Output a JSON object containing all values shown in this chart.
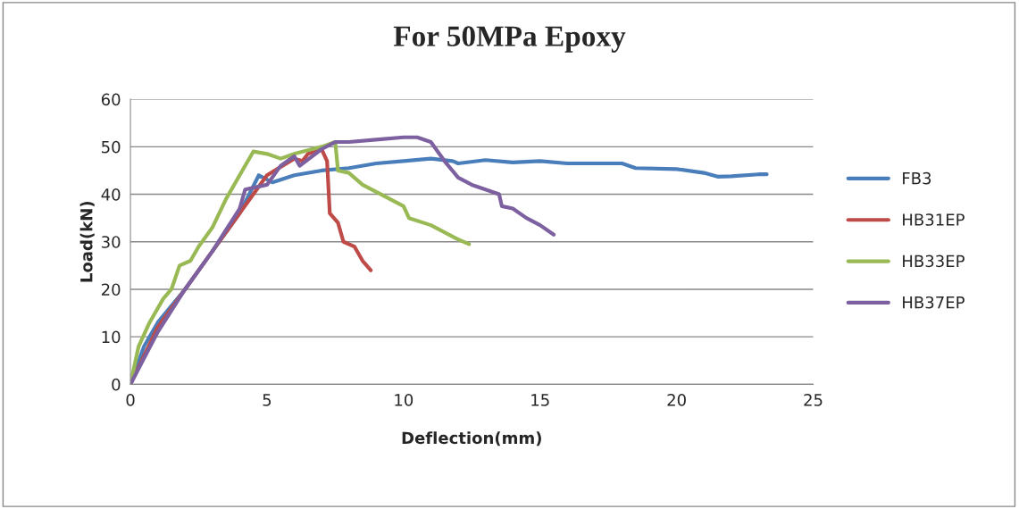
{
  "chart_data": {
    "type": "line",
    "title": "For 50MPa Epoxy",
    "xlabel": "Deflection(mm)",
    "ylabel": "Load(kN)",
    "xlim": [
      0,
      25
    ],
    "xticks": [
      0,
      5,
      10,
      15,
      20,
      25
    ],
    "ylim": [
      0,
      60
    ],
    "yticks": [
      0,
      10,
      20,
      30,
      40,
      50,
      60
    ],
    "grid": "y",
    "legend": "right",
    "marker": "none",
    "line_style": "solid",
    "series": [
      {
        "name": "FB3",
        "color": "#4a7ebb",
        "x": [
          0,
          0.5,
          1,
          2,
          3,
          4,
          4.7,
          5.2,
          6,
          7,
          8,
          9,
          10,
          11,
          11.8,
          12,
          13,
          14,
          15,
          16,
          17,
          18,
          18.5,
          20,
          21,
          21.5,
          22,
          23,
          23.3
        ],
        "values": [
          0,
          8,
          13,
          20,
          28,
          36,
          44,
          42.5,
          44,
          45,
          45.5,
          46.5,
          47,
          47.5,
          47,
          46.5,
          47.2,
          46.7,
          47,
          46.5,
          46.5,
          46.5,
          45.5,
          45.3,
          44.5,
          43.7,
          43.8,
          44.2,
          44.2
        ]
      },
      {
        "name": "HB31EP",
        "color": "#be4b48",
        "x": [
          0,
          1,
          2,
          3,
          4,
          5,
          6,
          6.3,
          6.5,
          7,
          7.2,
          7.3,
          7.6,
          7.8,
          8.2,
          8.5,
          8.8
        ],
        "values": [
          0,
          12,
          20,
          28,
          36,
          44,
          47.5,
          47,
          48.5,
          49.5,
          47,
          36,
          34,
          30,
          29,
          26,
          24
        ]
      },
      {
        "name": "HB33EP",
        "color": "#98b954",
        "x": [
          0,
          0.3,
          0.7,
          1.2,
          1.5,
          1.8,
          2.2,
          2.5,
          3,
          3.5,
          4,
          4.5,
          5,
          5.5,
          6,
          7,
          7.5,
          7.6,
          8,
          8.5,
          9,
          10,
          10.2,
          11,
          12,
          12.4
        ],
        "values": [
          0,
          8,
          13,
          18,
          20,
          25,
          26,
          29,
          33,
          39,
          44,
          49,
          48.5,
          47.5,
          48.5,
          50,
          51,
          45,
          44.5,
          42,
          40.5,
          37.5,
          35,
          33.5,
          30.5,
          29.5
        ]
      },
      {
        "name": "HB37EP",
        "color": "#7d60a0",
        "x": [
          0,
          1,
          2,
          3,
          4,
          4.2,
          5,
          5.5,
          6,
          6.2,
          7,
          7.5,
          8,
          9,
          10,
          10.5,
          11,
          11.5,
          12,
          12.5,
          13,
          13.5,
          13.6,
          14,
          14.5,
          15,
          15.5
        ],
        "values": [
          0,
          11,
          20,
          28,
          37,
          41,
          42,
          46,
          48,
          46,
          49.5,
          51,
          51,
          51.5,
          52,
          52,
          51,
          47,
          43.5,
          42,
          41,
          40,
          37.5,
          37,
          35,
          33.5,
          31.5
        ]
      }
    ]
  }
}
